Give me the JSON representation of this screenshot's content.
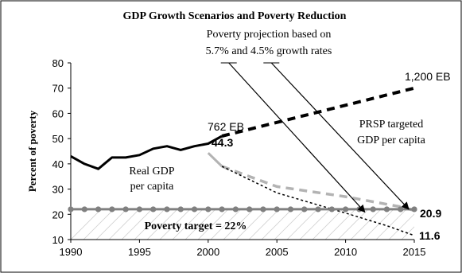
{
  "chart_data": {
    "type": "line",
    "title": "GDP Growth Scenarios and Poverty Reduction",
    "ylabel": "Percent of poverty",
    "xlabel": "",
    "xlim": [
      1990,
      2015
    ],
    "ylim": [
      10,
      80
    ],
    "x_ticks": [
      "1990",
      "1995",
      "2000",
      "2005",
      "2010",
      "2015"
    ],
    "y_ticks": [
      "10",
      "20",
      "30",
      "40",
      "50",
      "60",
      "70",
      "80"
    ],
    "grid": false,
    "legend": "none",
    "series": [
      {
        "name": "Real GDP per capita",
        "style": "solid",
        "color": "#000000",
        "x": [
          1990,
          1991,
          1992,
          1993,
          1994,
          1995,
          1996,
          1997,
          1998,
          1999,
          2000,
          2001
        ],
        "y": [
          43,
          40,
          38,
          42.5,
          42.5,
          43.5,
          46,
          47,
          45.5,
          47,
          48,
          51
        ]
      },
      {
        "name": "PRSP targeted GDP per capita",
        "style": "dashed",
        "color": "#000000",
        "x": [
          2001,
          2015
        ],
        "y": [
          51,
          70
        ]
      },
      {
        "name": "",
        "style": "solid",
        "color": "#b3b3b3",
        "x": [
          2000,
          2001
        ],
        "y": [
          44.3,
          39
        ]
      },
      {
        "name": "",
        "style": "dashed",
        "color": "#b3b3b3",
        "x": [
          2001,
          2005,
          2010,
          2014,
          2015
        ],
        "y": [
          39,
          31,
          27,
          23,
          21.5
        ]
      },
      {
        "name": "",
        "style": "dotted",
        "color": "#000000",
        "x": [
          2001,
          2005,
          2010,
          2013,
          2015
        ],
        "y": [
          39,
          28.5,
          20.5,
          15.5,
          11.6
        ]
      },
      {
        "name": "Poverty target = 22%",
        "style": "markers",
        "color": "#808080",
        "x": [
          1990,
          1991,
          1992,
          1993,
          1994,
          1995,
          1996,
          1997,
          1998,
          1999,
          2000,
          2001,
          2002,
          2003,
          2004,
          2005,
          2006,
          2007,
          2008,
          2009,
          2010,
          2011,
          2012,
          2013,
          2014,
          2015
        ],
        "y": [
          22,
          22,
          22,
          22,
          22,
          22,
          22,
          22,
          22,
          22,
          22,
          22,
          22,
          22,
          22,
          22,
          22,
          22,
          22,
          22,
          22,
          22,
          22,
          22,
          22,
          22
        ]
      }
    ],
    "annotations": {
      "projection_line1": "Poverty projection based on",
      "projection_line2": "5.7% and 4.5% growth rates",
      "eb_1200": "1,200 EB",
      "eb_762": "762 EB",
      "prsp_line1": "PRSP targeted",
      "prsp_line2": "GDP per capita",
      "real_line1": "Real GDP",
      "real_line2": "per capita",
      "val_44": "44.3",
      "val_209": "20.9",
      "val_116": "11.6",
      "target": "Poverty target = 22%"
    },
    "arrows": [
      {
        "from": [
          2001.5,
          80
        ],
        "to": [
          2011.4,
          20.9
        ]
      },
      {
        "from": [
          2004.6,
          80
        ],
        "to": [
          2014.6,
          22
        ]
      }
    ]
  }
}
